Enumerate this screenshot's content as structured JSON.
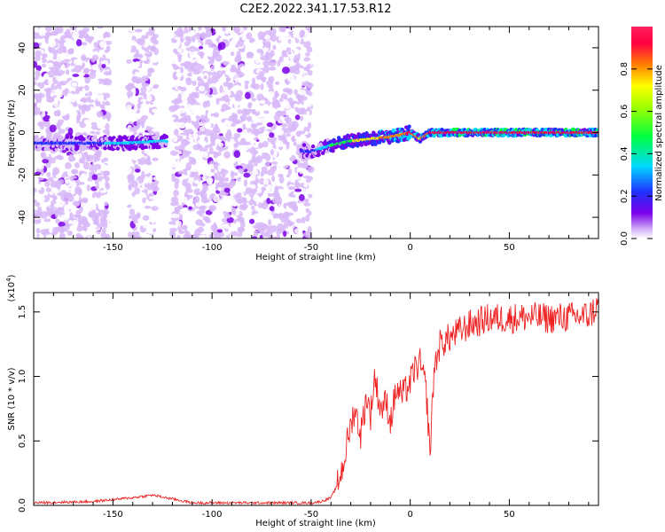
{
  "figure_title": "C2E2.2022.341.17.53.R12",
  "chart_data": [
    {
      "type": "heatmap",
      "title": "C2E2.2022.341.17.53.R12",
      "xlabel": "Height of straight line (km)",
      "ylabel": "Frequency (Hz)",
      "xlim": [
        -190,
        95
      ],
      "ylim": [
        -50,
        50
      ],
      "x_ticks": [
        -150,
        -100,
        -50,
        0,
        50
      ],
      "y_ticks": [
        -40,
        -20,
        0,
        20,
        40
      ],
      "colorbar": {
        "label": "Normalized spectral amplitude",
        "range": [
          0,
          1
        ],
        "ticks": [
          0.0,
          0.2,
          0.4,
          0.6,
          0.8
        ],
        "colormap": [
          "#ffffff",
          "#d8b8f8",
          "#7a00e8",
          "#2030ff",
          "#00d8ff",
          "#00ff40",
          "#ffff00",
          "#ff8000",
          "#ff0040",
          "#ff2060"
        ]
      },
      "noise_regions_x": [
        [
          -190,
          -152
        ],
        [
          -142,
          -128
        ],
        [
          -120,
          -50
        ]
      ],
      "signal_trace": [
        {
          "x": -190,
          "freq": -5,
          "amp": 0.3
        },
        {
          "x": -160,
          "freq": -5,
          "amp": 0.35
        },
        {
          "x": -145,
          "freq": -5,
          "amp": 0.45
        },
        {
          "x": -125,
          "freq": -4,
          "amp": 0.4
        },
        {
          "x": -50,
          "freq": -9,
          "amp": 0.35
        },
        {
          "x": -40,
          "freq": -6,
          "amp": 0.5
        },
        {
          "x": -30,
          "freq": -4,
          "amp": 0.6
        },
        {
          "x": -20,
          "freq": -3,
          "amp": 0.7
        },
        {
          "x": -10,
          "freq": -2,
          "amp": 0.75
        },
        {
          "x": 0,
          "freq": 0,
          "amp": 0.85
        },
        {
          "x": 5,
          "freq": -3,
          "amp": 0.7
        },
        {
          "x": 10,
          "freq": 0,
          "amp": 0.85
        },
        {
          "x": 30,
          "freq": 0,
          "amp": 0.9
        },
        {
          "x": 60,
          "freq": 0,
          "amp": 0.92
        },
        {
          "x": 95,
          "freq": 0,
          "amp": 0.92
        }
      ]
    },
    {
      "type": "line",
      "xlabel": "Height of straight line (km)",
      "ylabel": "SNR (10 * v/v)",
      "y_multiplier_label": "(x10",
      "y_multiplier_exp": "4",
      "y_multiplier_close": ")",
      "xlim": [
        -190,
        95
      ],
      "ylim": [
        0,
        1.65
      ],
      "x_ticks": [
        -150,
        -100,
        -50,
        0,
        50
      ],
      "y_ticks": [
        0.0,
        0.5,
        1.0,
        1.5
      ],
      "line_color": "#ee2222",
      "series": [
        {
          "x": [
            -190,
            -160,
            -140,
            -130,
            -120,
            -110,
            -100,
            -80,
            -60,
            -50,
            -45,
            -40,
            -37,
            -34,
            -31,
            -28,
            -25,
            -22,
            -20,
            -18,
            -15,
            -12,
            -10,
            -7,
            -4,
            0,
            2,
            5,
            8,
            10,
            12,
            15,
            20,
            25,
            30,
            40,
            50,
            60,
            70,
            80,
            90,
            95
          ],
          "y": [
            0.02,
            0.03,
            0.06,
            0.08,
            0.05,
            0.02,
            0.02,
            0.02,
            0.02,
            0.02,
            0.03,
            0.06,
            0.15,
            0.3,
            0.55,
            0.75,
            0.55,
            0.85,
            0.7,
            1.0,
            0.75,
            0.8,
            0.65,
            0.9,
            0.85,
            0.95,
            1.05,
            1.1,
            0.9,
            0.4,
            1.05,
            1.25,
            1.3,
            1.35,
            1.4,
            1.45,
            1.45,
            1.46,
            1.45,
            1.46,
            1.47,
            1.55
          ]
        }
      ]
    }
  ]
}
